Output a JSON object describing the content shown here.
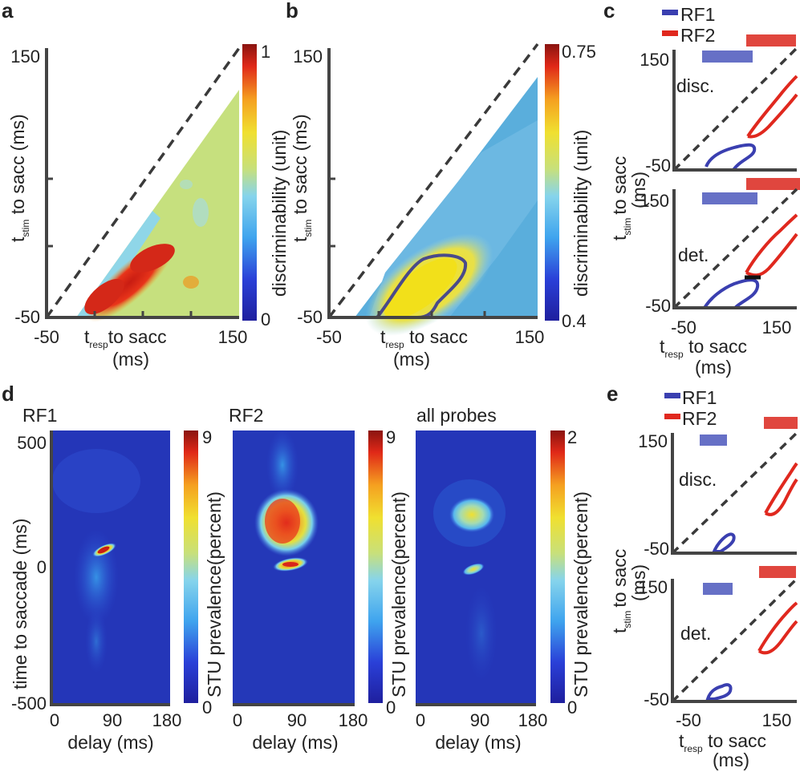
{
  "colors": {
    "rf1": "#3a3fb0",
    "rf1_bar": "#6670c6",
    "rf2": "#e0281e",
    "rf2_bar": "#e0463e",
    "axis": "#444444",
    "diag": "#3a3a3a"
  },
  "panel_a": {
    "letter": "a",
    "y_ticks": [
      "150",
      "-50"
    ],
    "x_ticks": [
      "-50",
      "150"
    ],
    "y_label_main": "t",
    "y_label_sub": "stim",
    "y_label_rest": " to sacc",
    "y_label_units": "(ms)",
    "x_label_main": "t",
    "x_label_sub": "resp",
    "x_label_rest": "to sacc",
    "x_label_units": "(ms)",
    "colorbar_top": "1",
    "colorbar_bottom": "0",
    "colorbar_label": "discriminability (unit)"
  },
  "panel_b": {
    "letter": "b",
    "y_ticks": [
      "150",
      "-50"
    ],
    "x_ticks": [
      "-50",
      "150"
    ],
    "y_label_main": "t",
    "y_label_sub": "stim",
    "y_label_rest": " to sacc",
    "y_label_units": "(ms)",
    "x_label_main": "t",
    "x_label_sub": "resp",
    "x_label_rest": " to sacc",
    "x_label_units": "(ms)",
    "colorbar_top": "0.75",
    "colorbar_bottom": "0.4",
    "colorbar_label": "discriminability (unit)"
  },
  "panel_c": {
    "letter": "c",
    "legend": [
      "RF1",
      "RF2"
    ],
    "top_label": "disc.",
    "bottom_label": "det.",
    "y_ticks": [
      "150",
      "-50"
    ],
    "x_ticks": [
      "-50",
      "150"
    ],
    "y_label_main": "t",
    "y_label_sub": "stim",
    "y_label_rest": "to sacc",
    "y_label_units": "(ms)",
    "x_label_main": "t",
    "x_label_sub": "resp",
    "x_label_rest": " to sacc",
    "x_label_units": "(ms)"
  },
  "panel_d": {
    "letter": "d",
    "titles": [
      "RF1",
      "RF2",
      "all probes"
    ],
    "y_ticks": [
      "500",
      "0",
      "-500"
    ],
    "x_ticks": [
      "0",
      "90",
      "180"
    ],
    "y_label": "time to saccade (ms)",
    "x_label": "delay (ms)",
    "colorbar_tops": [
      "9",
      "9",
      "2"
    ],
    "colorbar_bottom": "0",
    "colorbar_label": "STU prevalence(percent)"
  },
  "panel_e": {
    "letter": "e",
    "legend": [
      "RF1",
      "RF2"
    ],
    "top_label": "disc.",
    "bottom_label": "det.",
    "y_ticks": [
      "150",
      "-50"
    ],
    "x_ticks": [
      "-50",
      "150"
    ],
    "y_label_main": "t",
    "y_label_sub": "stim",
    "y_label_rest": "to sacc",
    "y_label_units": "(ms)",
    "x_label_main": "t",
    "x_label_sub": "resp",
    "x_label_rest": " to sacc",
    "x_label_units": "(ms)"
  }
}
